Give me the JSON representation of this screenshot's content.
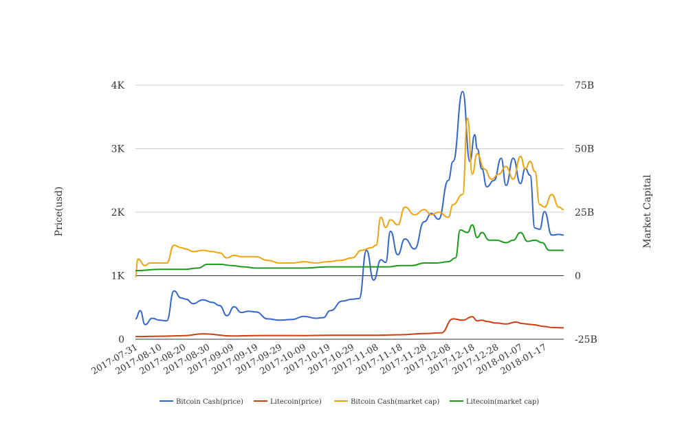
{
  "chart_data": {
    "type": "line",
    "ylabel": "Price(usd)",
    "y2label": "Market Capital",
    "yticks": [
      "0",
      "1K",
      "2K",
      "3K",
      "4K"
    ],
    "y2ticks": [
      "-25B",
      "0",
      "25B",
      "50B",
      "75B"
    ],
    "xticks": [
      "2017-07-31",
      "2017-08-10",
      "2017-08-20",
      "2017-08-30",
      "2017-09-09",
      "2017-09-19",
      "2017-09-29",
      "2017-10-09",
      "2017-10-19",
      "2017-10-29",
      "2017-11-08",
      "2017-11-18",
      "2017-11-28",
      "2017-12-08",
      "2017-12-18",
      "2017-12-28",
      "2018-01-07",
      "2018-01-17"
    ],
    "ylim": [
      0,
      4000
    ],
    "y2lim": [
      -25,
      75
    ],
    "y2_unit": "B",
    "grid": true,
    "legend_position": "bottom",
    "colors": {
      "Bitcoin Cash(price)": "#3366cc",
      "Litecoin(price)": "#cc3e11",
      "Bitcoin Cash(market cap)": "#f0a30a",
      "Litecoin(market cap)": "#1a9a1a"
    },
    "series": [
      {
        "name": "Bitcoin Cash(price)",
        "axis": "left",
        "x": [
          "2017-07-31",
          "2017-08-02",
          "2017-08-04",
          "2017-08-07",
          "2017-08-10",
          "2017-08-13",
          "2017-08-16",
          "2017-08-19",
          "2017-08-21",
          "2017-08-24",
          "2017-08-28",
          "2017-09-01",
          "2017-09-04",
          "2017-09-07",
          "2017-09-10",
          "2017-09-13",
          "2017-09-16",
          "2017-09-19",
          "2017-09-24",
          "2017-09-29",
          "2017-10-04",
          "2017-10-09",
          "2017-10-14",
          "2017-10-17",
          "2017-10-20",
          "2017-10-25",
          "2017-10-29",
          "2017-11-01",
          "2017-11-04",
          "2017-11-07",
          "2017-11-10",
          "2017-11-12",
          "2017-11-14",
          "2017-11-17",
          "2017-11-20",
          "2017-11-24",
          "2017-11-28",
          "2017-12-01",
          "2017-12-04",
          "2017-12-08",
          "2017-12-10",
          "2017-12-14",
          "2017-12-17",
          "2017-12-19",
          "2017-12-20",
          "2017-12-22",
          "2017-12-24",
          "2017-12-27",
          "2017-12-30",
          "2018-01-01",
          "2018-01-04",
          "2018-01-07",
          "2018-01-09",
          "2018-01-11",
          "2018-01-13",
          "2018-01-15",
          "2018-01-17",
          "2018-01-20",
          "2018-01-23",
          "2018-01-25"
        ],
        "values": [
          320,
          450,
          230,
          330,
          300,
          290,
          760,
          650,
          630,
          560,
          620,
          580,
          530,
          370,
          510,
          420,
          440,
          430,
          320,
          300,
          310,
          360,
          330,
          340,
          450,
          600,
          630,
          640,
          1400,
          930,
          1250,
          1210,
          1700,
          1330,
          1580,
          1420,
          1850,
          1980,
          1890,
          2500,
          2800,
          3900,
          2800,
          3220,
          3000,
          2680,
          2400,
          2500,
          2850,
          2420,
          2850,
          2450,
          2690,
          2580,
          1750,
          1730,
          2010,
          1640,
          1650,
          1640
        ]
      },
      {
        "name": "Litecoin(price)",
        "axis": "left",
        "x": [
          "2017-07-31",
          "2017-08-10",
          "2017-08-20",
          "2017-08-28",
          "2017-09-09",
          "2017-09-19",
          "2017-09-29",
          "2017-10-09",
          "2017-10-19",
          "2017-10-29",
          "2017-11-08",
          "2017-11-18",
          "2017-11-28",
          "2017-12-05",
          "2017-12-10",
          "2017-12-14",
          "2017-12-18",
          "2017-12-20",
          "2017-12-22",
          "2017-12-24",
          "2017-12-28",
          "2018-01-01",
          "2018-01-05",
          "2018-01-08",
          "2018-01-12",
          "2018-01-17",
          "2018-01-20",
          "2018-01-25"
        ],
        "values": [
          42,
          48,
          55,
          85,
          52,
          57,
          58,
          57,
          62,
          63,
          63,
          70,
          90,
          100,
          320,
          300,
          355,
          290,
          300,
          280,
          255,
          240,
          270,
          245,
          230,
          200,
          185,
          180
        ]
      },
      {
        "name": "Bitcoin Cash(market cap)",
        "axis": "right",
        "x": [
          "2017-07-31",
          "2017-08-01",
          "2017-08-04",
          "2017-08-06",
          "2017-08-10",
          "2017-08-13",
          "2017-08-16",
          "2017-08-19",
          "2017-08-21",
          "2017-08-24",
          "2017-08-28",
          "2017-09-01",
          "2017-09-04",
          "2017-09-07",
          "2017-09-10",
          "2017-09-13",
          "2017-09-16",
          "2017-09-19",
          "2017-09-24",
          "2017-09-29",
          "2017-10-04",
          "2017-10-09",
          "2017-10-14",
          "2017-10-19",
          "2017-10-24",
          "2017-10-29",
          "2017-11-02",
          "2017-11-06",
          "2017-11-08",
          "2017-11-10",
          "2017-11-12",
          "2017-11-14",
          "2017-11-17",
          "2017-11-20",
          "2017-11-24",
          "2017-11-28",
          "2017-12-01",
          "2017-12-04",
          "2017-12-08",
          "2017-12-10",
          "2017-12-14",
          "2017-12-16",
          "2017-12-18",
          "2017-12-20",
          "2017-12-23",
          "2017-12-26",
          "2017-12-29",
          "2018-01-01",
          "2018-01-04",
          "2018-01-07",
          "2018-01-09",
          "2018-01-11",
          "2018-01-13",
          "2018-01-15",
          "2018-01-17",
          "2018-01-20",
          "2018-01-23",
          "2018-01-25"
        ],
        "values": [
          -0.5,
          6.5,
          4,
          5,
          5,
          5,
          12,
          11,
          10.5,
          9.5,
          10,
          9.5,
          9,
          7,
          8,
          7.5,
          7.5,
          7.5,
          6,
          5,
          5,
          5.5,
          5,
          5.5,
          6,
          7,
          10,
          11,
          12,
          23,
          19,
          22,
          20,
          27,
          24,
          26,
          24,
          25,
          23,
          28,
          32,
          62,
          40,
          48,
          42,
          38,
          40,
          43,
          38,
          47,
          42,
          45,
          41,
          28,
          27,
          32,
          27,
          26
        ]
      },
      {
        "name": "Litecoin(market cap)",
        "axis": "right",
        "x": [
          "2017-07-31",
          "2017-08-10",
          "2017-08-20",
          "2017-08-26",
          "2017-08-30",
          "2017-09-04",
          "2017-09-09",
          "2017-09-14",
          "2017-09-19",
          "2017-09-29",
          "2017-10-09",
          "2017-10-19",
          "2017-10-29",
          "2017-11-08",
          "2017-11-13",
          "2017-11-18",
          "2017-11-23",
          "2017-11-28",
          "2017-12-03",
          "2017-12-08",
          "2017-12-11",
          "2017-12-13",
          "2017-12-16",
          "2017-12-18",
          "2017-12-20",
          "2017-12-22",
          "2017-12-25",
          "2017-12-28",
          "2018-01-01",
          "2018-01-04",
          "2018-01-07",
          "2018-01-10",
          "2018-01-13",
          "2018-01-16",
          "2018-01-19",
          "2018-01-22",
          "2018-01-25"
        ],
        "values": [
          2,
          2.5,
          2.5,
          3,
          4.5,
          4.5,
          4,
          3.5,
          3,
          3,
          3,
          3.5,
          3.5,
          3.5,
          3.5,
          4,
          4,
          5,
          5,
          5.5,
          7,
          18,
          17,
          20,
          15,
          17,
          14,
          14,
          13,
          14,
          17,
          13.5,
          14,
          13,
          10,
          10,
          10
        ]
      }
    ]
  }
}
